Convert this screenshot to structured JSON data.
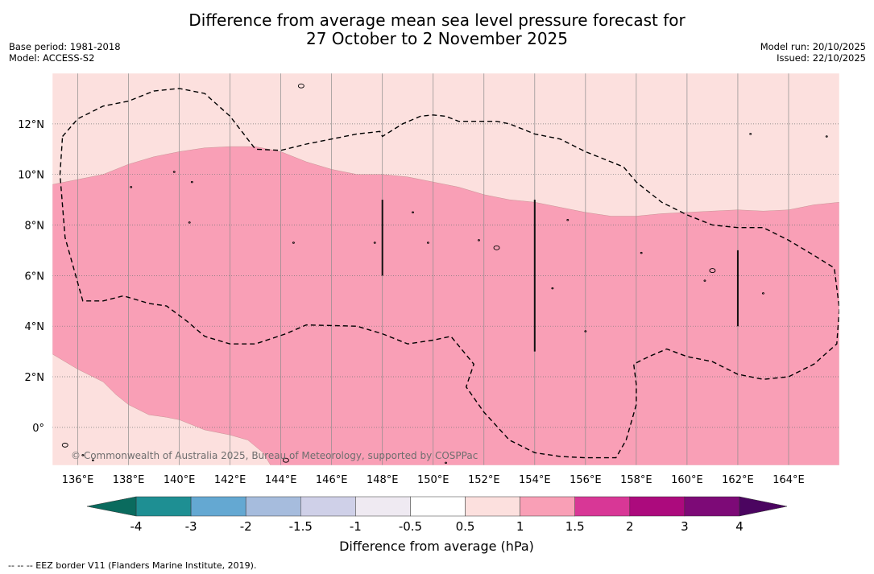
{
  "title": {
    "line1": "Difference from average mean sea level pressure forecast for",
    "line2": "27 October to 2 November 2025"
  },
  "meta": {
    "base_period": "Base period: 1981-2018",
    "model": "Model: ACCESS-S2",
    "model_run": "Model run: 20/10/2025",
    "issued": "Issued: 22/10/2025"
  },
  "copyright": "© Commonwealth of Australia 2025, Bureau of Meteorology, supported by COSPPac",
  "footer": "--  --  -- EEZ border V11 (Flanders Marine Institute, 2019).",
  "chart_data": {
    "type": "heatmap",
    "variable": "Mean sea level pressure anomaly",
    "units": "hPa",
    "xlim": [
      135,
      166
    ],
    "ylim": [
      -1.5,
      14
    ],
    "x_ticks": [
      136,
      138,
      140,
      142,
      144,
      146,
      148,
      150,
      152,
      154,
      156,
      158,
      160,
      162,
      164
    ],
    "x_tick_labels": [
      "136°E",
      "138°E",
      "140°E",
      "142°E",
      "144°E",
      "146°E",
      "148°E",
      "150°E",
      "152°E",
      "154°E",
      "156°E",
      "158°E",
      "160°E",
      "162°E",
      "164°E"
    ],
    "y_ticks": [
      0,
      2,
      4,
      6,
      8,
      10,
      12
    ],
    "y_tick_labels": [
      "0°",
      "2°N",
      "4°N",
      "6°N",
      "8°N",
      "10°N",
      "12°N"
    ],
    "colorbar": {
      "title": "Difference from average (hPa)",
      "labels": [
        "-4",
        "-3",
        "-2",
        "-1.5",
        "-1",
        "-0.5",
        "0.5",
        "1",
        "1.5",
        "2",
        "3",
        "4"
      ],
      "boundaries": [
        -4,
        -3,
        -2,
        -1.5,
        -1,
        -0.5,
        0.5,
        1,
        1.5,
        2,
        3,
        4
      ],
      "colors": [
        "#1e8f93",
        "#64a8d2",
        "#a6bcdd",
        "#cfd0e8",
        "#efeaf2",
        "#ffffff",
        "#fce0de",
        "#f99fb6",
        "#d83796",
        "#ac0a7d",
        "#7d0a77"
      ],
      "extend_low_color": "#0a6b5e",
      "extend_high_color": "#4b0560"
    },
    "regions": [
      {
        "range": "0.5 to 1 hPa",
        "color": "#fce0de",
        "location": "north of ~9–11°N and southwest corner"
      },
      {
        "range": "1 to 1.5 hPa",
        "color": "#f99fb6",
        "location": "broad band across 0–10°N"
      }
    ],
    "contour_north_boundary": [
      [
        135,
        9.6
      ],
      [
        136,
        9.8
      ],
      [
        137,
        10.0
      ],
      [
        138,
        10.4
      ],
      [
        139,
        10.7
      ],
      [
        140,
        10.9
      ],
      [
        141,
        11.05
      ],
      [
        142,
        11.1
      ],
      [
        143,
        11.1
      ],
      [
        144,
        10.9
      ],
      [
        145,
        10.5
      ],
      [
        146,
        10.2
      ],
      [
        147,
        10.0
      ],
      [
        148,
        10.0
      ],
      [
        149,
        9.9
      ],
      [
        150,
        9.7
      ],
      [
        151,
        9.5
      ],
      [
        152,
        9.2
      ],
      [
        153,
        9.0
      ],
      [
        154,
        8.9
      ],
      [
        155,
        8.7
      ],
      [
        156,
        8.5
      ],
      [
        157,
        8.35
      ],
      [
        158,
        8.35
      ],
      [
        159,
        8.45
      ],
      [
        160,
        8.5
      ],
      [
        161,
        8.55
      ],
      [
        162,
        8.6
      ],
      [
        163,
        8.55
      ],
      [
        164,
        8.6
      ],
      [
        165,
        8.8
      ],
      [
        166,
        8.9
      ]
    ],
    "contour_south_boundary": [
      [
        135,
        2.9
      ],
      [
        136,
        2.3
      ],
      [
        137,
        1.8
      ],
      [
        137.5,
        1.3
      ],
      [
        138,
        0.9
      ],
      [
        138.8,
        0.5
      ],
      [
        139.5,
        0.4
      ],
      [
        140,
        0.3
      ],
      [
        141,
        -0.1
      ],
      [
        142,
        -0.3
      ],
      [
        142.7,
        -0.5
      ],
      [
        143.3,
        -1.0
      ],
      [
        143.6,
        -1.5
      ]
    ],
    "eez_border": [
      [
        135.4,
        11.5
      ],
      [
        136,
        12.2
      ],
      [
        137,
        12.7
      ],
      [
        138,
        12.9
      ],
      [
        139,
        13.3
      ],
      [
        140,
        13.4
      ],
      [
        141,
        13.2
      ],
      [
        142,
        12.3
      ],
      [
        143,
        11.0
      ],
      [
        144,
        10.95
      ],
      [
        145,
        11.2
      ],
      [
        146,
        11.4
      ],
      [
        147,
        11.6
      ],
      [
        147.9,
        11.7
      ],
      [
        148,
        11.5
      ],
      [
        148.8,
        12.0
      ],
      [
        149.5,
        12.3
      ],
      [
        150,
        12.35
      ],
      [
        150.5,
        12.3
      ],
      [
        151,
        12.1
      ],
      [
        151.7,
        12.1
      ],
      [
        152.5,
        12.1
      ],
      [
        153,
        12.0
      ],
      [
        154,
        11.6
      ],
      [
        155,
        11.4
      ],
      [
        156,
        10.9
      ],
      [
        157,
        10.5
      ],
      [
        157.5,
        10.3
      ],
      [
        158,
        9.7
      ],
      [
        159,
        8.9
      ],
      [
        160,
        8.4
      ],
      [
        161,
        8.0
      ],
      [
        162,
        7.9
      ],
      [
        163,
        7.9
      ],
      [
        164,
        7.4
      ],
      [
        165,
        6.8
      ],
      [
        165.8,
        6.3
      ],
      [
        166,
        4.7
      ],
      [
        165.9,
        3.3
      ],
      [
        165,
        2.5
      ],
      [
        164,
        2.0
      ],
      [
        163,
        1.9
      ],
      [
        162,
        2.1
      ],
      [
        161,
        2.6
      ],
      [
        160,
        2.8
      ],
      [
        159.2,
        3.1
      ],
      [
        158.5,
        2.8
      ],
      [
        157.9,
        2.5
      ],
      [
        158,
        1.7
      ],
      [
        158,
        0.9
      ],
      [
        157.6,
        -0.5
      ],
      [
        157.2,
        -1.2
      ],
      [
        156,
        -1.2
      ],
      [
        155,
        -1.15
      ],
      [
        154,
        -1.0
      ],
      [
        153,
        -0.5
      ],
      [
        152,
        0.6
      ],
      [
        151.3,
        1.6
      ],
      [
        151.6,
        2.5
      ],
      [
        150.7,
        3.6
      ],
      [
        150,
        3.45
      ],
      [
        149,
        3.3
      ],
      [
        148,
        3.7
      ],
      [
        147,
        4.0
      ],
      [
        145,
        4.05
      ],
      [
        144.2,
        3.7
      ],
      [
        143,
        3.3
      ],
      [
        142,
        3.3
      ],
      [
        141,
        3.6
      ],
      [
        140.3,
        4.2
      ],
      [
        139.5,
        4.8
      ],
      [
        138.8,
        4.9
      ],
      [
        137.8,
        5.2
      ],
      [
        137,
        5.0
      ],
      [
        136.2,
        5.0
      ],
      [
        135.5,
        7.5
      ],
      [
        135.3,
        10.0
      ],
      [
        135.4,
        11.5
      ]
    ],
    "vertical_markers": [
      {
        "lon": 148,
        "lat_from": 6,
        "lat_to": 9
      },
      {
        "lon": 154,
        "lat_from": 3,
        "lat_to": 9
      },
      {
        "lon": 162,
        "lat_from": 4,
        "lat_to": 7
      }
    ],
    "islands": [
      [
        144.8,
        13.5
      ],
      [
        138.1,
        9.5
      ],
      [
        139.8,
        10.1
      ],
      [
        140.5,
        9.7
      ],
      [
        140.4,
        8.1
      ],
      [
        144.5,
        7.3
      ],
      [
        147.7,
        7.3
      ],
      [
        149.2,
        8.5
      ],
      [
        149.8,
        7.3
      ],
      [
        151.8,
        7.4
      ],
      [
        152.5,
        7.1
      ],
      [
        155.3,
        8.2
      ],
      [
        158.2,
        6.9
      ],
      [
        160.7,
        5.8
      ],
      [
        161.0,
        6.2
      ],
      [
        163.0,
        5.3
      ],
      [
        162.5,
        11.6
      ],
      [
        165.5,
        11.5
      ],
      [
        156.0,
        3.8
      ],
      [
        154.7,
        5.5
      ],
      [
        135.5,
        -0.7
      ],
      [
        136.2,
        -1.1
      ],
      [
        144.2,
        -1.3
      ],
      [
        150.5,
        -1.4
      ],
      [
        136.6,
        -1.3
      ]
    ]
  }
}
